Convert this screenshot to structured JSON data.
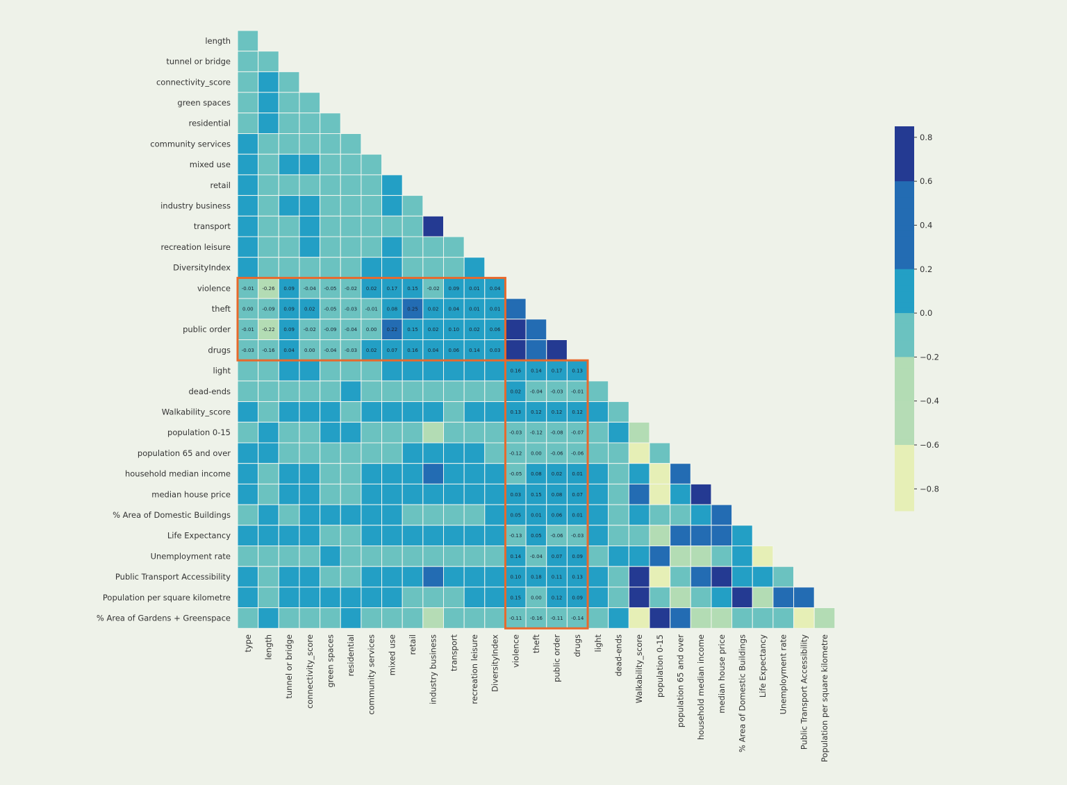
{
  "chart_data": {
    "type": "heatmap",
    "mask": "upper-triangle",
    "row_labels": [
      "length",
      "tunnel or bridge",
      "connectivity_score",
      "green spaces",
      "residential",
      "community services",
      "mixed use",
      "retail",
      "industry business",
      "transport",
      "recreation leisure",
      "DiversityIndex",
      "violence",
      "theft",
      "public order",
      "drugs",
      "light",
      "dead-ends",
      "Walkability_score",
      "population 0-15",
      "population 65 and over",
      "household median income",
      "median house price",
      "% Area of Domestic Buildings",
      "Life Expectancy",
      "Unemployment rate",
      "Public Transport Accessibility",
      "Population per square kilometre",
      "% Area of Gardens + Greenspace"
    ],
    "col_labels": [
      "type",
      "length",
      "tunnel or bridge",
      "connectivity_score",
      "green spaces",
      "residential",
      "community services",
      "mixed use",
      "retail",
      "industry business",
      "transport",
      "recreation leisure",
      "DiversityIndex",
      "violence",
      "theft",
      "public order",
      "drugs",
      "light",
      "dead-ends",
      "Walkability_score",
      "population 0-15",
      "population 65 and over",
      "household median income",
      "median house price",
      "% Area of Domestic Buildings",
      "Life Expectancy",
      "Unemployment rate",
      "Public Transport Accessibility",
      "Population per square kilometre"
    ],
    "values": [
      [
        -0.1
      ],
      [
        -0.1,
        -0.1
      ],
      [
        -0.1,
        0.1,
        -0.1
      ],
      [
        -0.1,
        0.1,
        -0.1,
        -0.1
      ],
      [
        -0.1,
        0.1,
        -0.1,
        -0.1,
        -0.1
      ],
      [
        0.1,
        -0.1,
        -0.1,
        -0.1,
        -0.1,
        -0.1
      ],
      [
        0.1,
        -0.1,
        0.1,
        0.1,
        -0.1,
        -0.1,
        -0.1
      ],
      [
        0.1,
        -0.1,
        -0.1,
        -0.1,
        -0.1,
        -0.1,
        -0.1,
        0.1
      ],
      [
        0.1,
        -0.1,
        0.1,
        0.1,
        -0.1,
        -0.1,
        -0.1,
        0.1,
        -0.1
      ],
      [
        0.1,
        -0.1,
        -0.1,
        0.1,
        -0.1,
        -0.1,
        -0.1,
        -0.1,
        -0.1,
        0.75
      ],
      [
        0.1,
        -0.1,
        -0.1,
        0.1,
        -0.1,
        -0.1,
        -0.1,
        0.1,
        -0.1,
        -0.1,
        -0.1
      ],
      [
        0.1,
        -0.1,
        -0.1,
        -0.1,
        -0.1,
        -0.1,
        0.1,
        0.1,
        -0.1,
        -0.1,
        -0.1,
        0.1
      ],
      [
        -0.01,
        -0.26,
        0.09,
        -0.04,
        -0.05,
        -0.02,
        0.02,
        0.17,
        0.15,
        -0.02,
        0.09,
        0.01,
        0.04
      ],
      [
        -0.0,
        -0.09,
        0.09,
        0.02,
        -0.05,
        -0.03,
        -0.01,
        0.08,
        0.25,
        0.02,
        0.04,
        0.01,
        0.01,
        0.5
      ],
      [
        -0.01,
        -0.22,
        0.09,
        -0.02,
        -0.09,
        -0.04,
        -0.0,
        0.22,
        0.15,
        0.02,
        0.1,
        0.02,
        0.06,
        0.75,
        0.5
      ],
      [
        -0.03,
        -0.16,
        0.04,
        -0.0,
        -0.04,
        -0.03,
        0.02,
        0.07,
        0.16,
        0.04,
        0.06,
        0.14,
        0.03,
        0.75,
        0.5,
        0.75
      ],
      [
        -0.1,
        -0.1,
        0.1,
        0.1,
        -0.1,
        -0.1,
        -0.1,
        0.1,
        0.1,
        0.1,
        0.1,
        0.1,
        0.1,
        0.16,
        0.14,
        0.17,
        0.13
      ],
      [
        -0.1,
        -0.1,
        -0.1,
        -0.1,
        -0.1,
        0.1,
        -0.1,
        -0.1,
        -0.1,
        -0.1,
        -0.1,
        -0.1,
        -0.1,
        0.02,
        -0.04,
        -0.03,
        -0.01,
        -0.1
      ],
      [
        0.1,
        -0.1,
        0.1,
        0.1,
        0.1,
        -0.1,
        0.1,
        0.1,
        0.1,
        0.1,
        -0.1,
        0.1,
        0.1,
        0.13,
        0.12,
        0.12,
        0.12,
        0.1,
        -0.1
      ],
      [
        -0.1,
        0.1,
        -0.1,
        -0.1,
        0.1,
        0.1,
        -0.1,
        -0.1,
        -0.1,
        -0.3,
        -0.1,
        -0.1,
        -0.1,
        -0.03,
        -0.12,
        -0.08,
        -0.07,
        -0.1,
        0.1,
        -0.3
      ],
      [
        0.1,
        0.1,
        -0.1,
        -0.1,
        -0.1,
        -0.1,
        -0.1,
        -0.1,
        0.1,
        0.1,
        0.1,
        0.1,
        -0.1,
        -0.12,
        0.0,
        -0.06,
        -0.06,
        -0.1,
        -0.1,
        -0.6,
        -0.1
      ],
      [
        0.1,
        -0.1,
        0.1,
        0.1,
        -0.1,
        -0.1,
        0.1,
        0.1,
        0.1,
        0.45,
        0.1,
        0.1,
        0.1,
        -0.05,
        0.08,
        0.02,
        0.01,
        0.1,
        -0.1,
        0.1,
        -0.6,
        0.5
      ],
      [
        0.1,
        -0.1,
        0.1,
        0.1,
        -0.1,
        -0.1,
        0.1,
        0.1,
        0.1,
        0.1,
        0.1,
        0.1,
        0.1,
        0.03,
        0.15,
        0.08,
        0.07,
        0.1,
        -0.1,
        0.5,
        -0.6,
        0.1,
        0.75
      ],
      [
        -0.1,
        0.1,
        -0.1,
        0.1,
        0.1,
        0.1,
        0.1,
        0.1,
        -0.1,
        -0.1,
        -0.1,
        -0.1,
        0.1,
        0.05,
        0.01,
        0.06,
        0.01,
        0.1,
        -0.1,
        0.1,
        -0.1,
        -0.1,
        0.1,
        0.5
      ],
      [
        0.1,
        0.1,
        0.1,
        0.1,
        -0.1,
        -0.1,
        0.1,
        0.1,
        0.1,
        0.1,
        0.1,
        0.1,
        0.1,
        -0.13,
        0.05,
        -0.06,
        -0.03,
        0.1,
        -0.1,
        -0.1,
        -0.3,
        0.5,
        0.5,
        0.5,
        0.1
      ],
      [
        -0.1,
        -0.1,
        -0.1,
        -0.1,
        0.1,
        -0.1,
        -0.1,
        -0.1,
        -0.1,
        -0.1,
        -0.1,
        -0.1,
        -0.1,
        0.14,
        -0.04,
        0.07,
        0.09,
        -0.1,
        0.1,
        0.1,
        0.5,
        -0.3,
        -0.3,
        -0.1,
        0.1,
        -0.6
      ],
      [
        0.1,
        -0.1,
        0.1,
        0.1,
        -0.1,
        -0.1,
        0.1,
        0.1,
        0.1,
        0.45,
        0.1,
        0.1,
        0.1,
        0.1,
        0.18,
        0.11,
        0.13,
        0.1,
        -0.1,
        0.75,
        -0.6,
        -0.1,
        0.5,
        0.75,
        0.1,
        0.1,
        -0.1
      ],
      [
        0.1,
        -0.1,
        0.1,
        0.1,
        0.1,
        0.1,
        0.1,
        0.1,
        -0.1,
        -0.1,
        -0.1,
        0.1,
        0.1,
        0.15,
        -0.0,
        0.12,
        0.09,
        0.1,
        -0.1,
        0.75,
        -0.1,
        -0.3,
        -0.1,
        0.1,
        0.75,
        -0.3,
        0.5,
        0.5
      ],
      [
        -0.1,
        0.1,
        -0.1,
        -0.1,
        -0.1,
        0.1,
        -0.1,
        -0.1,
        -0.1,
        -0.4,
        -0.1,
        -0.1,
        -0.1,
        -0.11,
        -0.16,
        -0.11,
        -0.14,
        -0.1,
        0.1,
        -0.6,
        0.75,
        0.5,
        -0.3,
        -0.3,
        -0.1,
        -0.1,
        -0.1,
        -0.6,
        -0.3
      ]
    ],
    "annotated_rows": [
      "violence",
      "theft",
      "public order",
      "drugs"
    ],
    "annotated_cols": [
      "violence",
      "theft",
      "public order",
      "drugs"
    ],
    "colorbar": {
      "range": [
        -0.9,
        0.85
      ],
      "ticks": [
        "0.8",
        "0.6",
        "0.4",
        "0.2",
        "0.0",
        "−0.2",
        "−0.4",
        "−0.6",
        "−0.8"
      ],
      "tick_values": [
        0.8,
        0.6,
        0.4,
        0.2,
        0.0,
        -0.2,
        -0.4,
        -0.6,
        -0.8
      ],
      "colormap": "YlGnBu (discrete)"
    },
    "colors": {
      "levels": [
        {
          "max": -0.6,
          "color": "#e6efb6"
        },
        {
          "max": -0.4,
          "color": "#b5dcb5"
        },
        {
          "max": -0.2,
          "color": "#b3dcb4"
        },
        {
          "max": 0.0,
          "color": "#6bc2c0"
        },
        {
          "max": 0.2,
          "color": "#239fc5"
        },
        {
          "max": 0.4,
          "color": "#236cb3"
        },
        {
          "max": 0.6,
          "color": "#236cb3"
        },
        {
          "max": 1.0,
          "color": "#243a92"
        }
      ],
      "highlight": "#e8692c",
      "background": "#eef2e9"
    }
  }
}
